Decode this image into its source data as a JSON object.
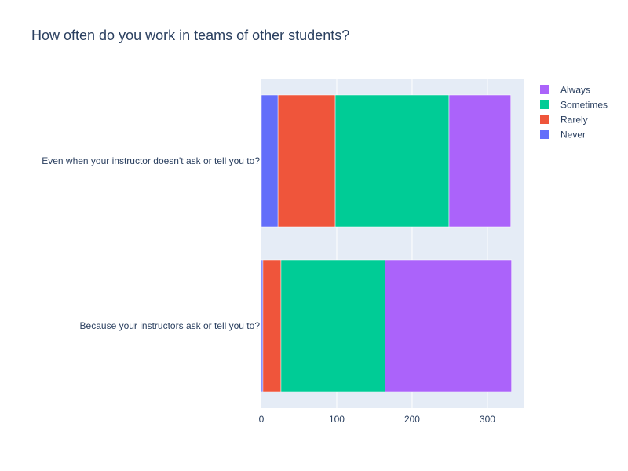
{
  "chart_data": {
    "type": "bar",
    "orientation": "horizontal",
    "stacked": true,
    "title": "How often do you work in teams of other students?",
    "xlabel": "",
    "ylabel": "",
    "categories": [
      "Because your instructors ask or tell you to?",
      "Even when your instructor doesn't ask or tell you to?"
    ],
    "series": [
      {
        "name": "Never",
        "color": "#636efa",
        "values": [
          2,
          22
        ]
      },
      {
        "name": "Rarely",
        "color": "#ef553b",
        "values": [
          24,
          76
        ]
      },
      {
        "name": "Sometimes",
        "color": "#00cc96",
        "values": [
          138,
          151
        ]
      },
      {
        "name": "Always",
        "color": "#ab63fa",
        "values": [
          168,
          82
        ]
      }
    ],
    "xlim": [
      0,
      348
    ],
    "xticks": [
      0,
      100,
      200,
      300
    ],
    "grid": true,
    "legend_position": "top-right",
    "legend_order": [
      "Always",
      "Sometimes",
      "Rarely",
      "Never"
    ]
  }
}
